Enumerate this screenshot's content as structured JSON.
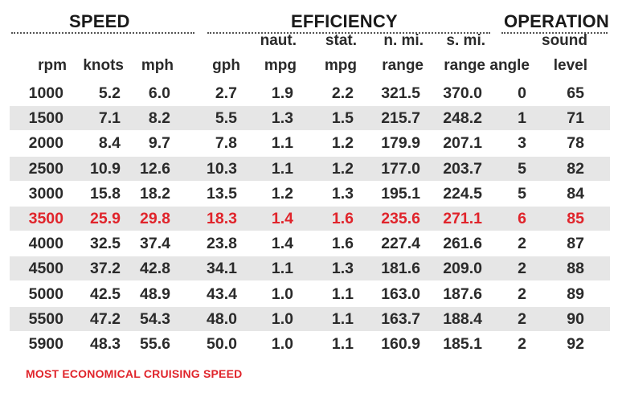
{
  "groups": {
    "speed": "SPEED",
    "efficiency": "EFFICIENCY",
    "operation": "OPERATION"
  },
  "columns": [
    {
      "line1": "",
      "line2": "rpm"
    },
    {
      "line1": "",
      "line2": "knots"
    },
    {
      "line1": "",
      "line2": "mph"
    },
    {
      "line1": "",
      "line2": "gph"
    },
    {
      "line1": "naut.",
      "line2": "mpg"
    },
    {
      "line1": "stat.",
      "line2": "mpg"
    },
    {
      "line1": "n. mi.",
      "line2": "range"
    },
    {
      "line1": "s. mi.",
      "line2": "range"
    },
    {
      "line1": "",
      "line2": "angle"
    },
    {
      "line1": "sound",
      "line2": "level"
    }
  ],
  "rows": [
    [
      "1000",
      "5.2",
      "6.0",
      "2.7",
      "1.9",
      "2.2",
      "321.5",
      "370.0",
      "0",
      "65"
    ],
    [
      "1500",
      "7.1",
      "8.2",
      "5.5",
      "1.3",
      "1.5",
      "215.7",
      "248.2",
      "1",
      "71"
    ],
    [
      "2000",
      "8.4",
      "9.7",
      "7.8",
      "1.1",
      "1.2",
      "179.9",
      "207.1",
      "3",
      "78"
    ],
    [
      "2500",
      "10.9",
      "12.6",
      "10.3",
      "1.1",
      "1.2",
      "177.0",
      "203.7",
      "5",
      "82"
    ],
    [
      "3000",
      "15.8",
      "18.2",
      "13.5",
      "1.2",
      "1.3",
      "195.1",
      "224.5",
      "5",
      "84"
    ],
    [
      "3500",
      "25.9",
      "29.8",
      "18.3",
      "1.4",
      "1.6",
      "235.6",
      "271.1",
      "6",
      "85"
    ],
    [
      "4000",
      "32.5",
      "37.4",
      "23.8",
      "1.4",
      "1.6",
      "227.4",
      "261.6",
      "2",
      "87"
    ],
    [
      "4500",
      "37.2",
      "42.8",
      "34.1",
      "1.1",
      "1.3",
      "181.6",
      "209.0",
      "2",
      "88"
    ],
    [
      "5000",
      "42.5",
      "48.9",
      "43.4",
      "1.0",
      "1.1",
      "163.0",
      "187.6",
      "2",
      "89"
    ],
    [
      "5500",
      "47.2",
      "54.3",
      "48.0",
      "1.0",
      "1.1",
      "163.7",
      "188.4",
      "2",
      "90"
    ],
    [
      "5900",
      "48.3",
      "55.6",
      "50.0",
      "1.0",
      "1.1",
      "160.9",
      "185.1",
      "2",
      "92"
    ]
  ],
  "highlight_row_index": 5,
  "colors": {
    "highlight": "#e0242b",
    "row_shade": "#e6e6e6",
    "text": "#2a2a2a"
  },
  "footnote": "MOST ECONOMICAL CRUISING SPEED"
}
